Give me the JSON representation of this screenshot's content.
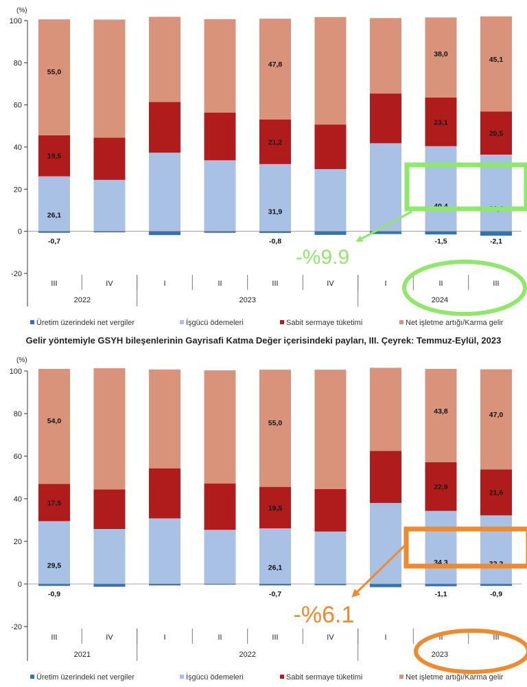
{
  "colors": {
    "tax": "#2e75b6",
    "labor": "#a9c1e4",
    "capital": "#b01c1c",
    "surplus": "#d9937a",
    "highlight_green": "#8ee86a",
    "highlight_orange": "#f08a2c"
  },
  "legend": [
    {
      "key": "tax",
      "label": "Üretim üzerindeki net vergiler"
    },
    {
      "key": "labor",
      "label": "İşgücü ödemeleri"
    },
    {
      "key": "capital",
      "label": "Sabit sermaye tüketimi"
    },
    {
      "key": "surplus",
      "label": "Net işletme artığı/Karma gelir"
    }
  ],
  "middle_caption": "Gelir yöntemiyle GSYH bileşenlerinin Gayrisafi Katma Değer içerisindeki payları, III. Çeyrek: Temmuz-Eylül, 2023",
  "chart_data": [
    {
      "type": "bar",
      "stacked": true,
      "ylabel": "(%)",
      "ylim": [
        -20,
        100
      ],
      "yticks": [
        -20,
        0,
        20,
        40,
        60,
        80,
        100
      ],
      "grid": false,
      "legend_position": "bottom",
      "categories": [
        "III",
        "IV",
        "I",
        "II",
        "III",
        "IV",
        "I",
        "II",
        "III"
      ],
      "year_groups": [
        {
          "label": "2022",
          "count": 2
        },
        {
          "label": "2023",
          "count": 4
        },
        {
          "label": "2024",
          "count": 3
        }
      ],
      "series": [
        {
          "key": "tax",
          "name": "Üretim üzerindeki net vergiler",
          "values": [
            -0.7,
            -0.5,
            -1.8,
            -0.7,
            -0.8,
            -1.7,
            -1.3,
            -1.5,
            -2.1
          ]
        },
        {
          "key": "labor",
          "name": "İşgücü ödemeleri",
          "values": [
            26.1,
            24.4,
            37.3,
            33.7,
            31.9,
            29.5,
            41.8,
            40.4,
            36.4
          ]
        },
        {
          "key": "capital",
          "name": "Sabit sermaye tüketimi",
          "values": [
            19.5,
            20.0,
            24.1,
            22.6,
            21.2,
            21.2,
            23.6,
            23.1,
            20.5
          ]
        },
        {
          "key": "surplus",
          "name": "Net işletme artığı/Karma gelir",
          "values": [
            55.0,
            56.1,
            40.4,
            44.4,
            47.8,
            51.0,
            35.8,
            38.0,
            45.1
          ]
        }
      ],
      "data_labels": [
        {
          "index": 0,
          "tax": "-0,7",
          "labor": "26,1",
          "capital": "19,5",
          "surplus": "55,0"
        },
        {
          "index": 4,
          "tax": "-0,8",
          "labor": "31,9",
          "capital": "21,2",
          "surplus": "47,8"
        },
        {
          "index": 7,
          "tax": "-1,5",
          "labor": "40,4",
          "capital": "23,1",
          "surplus": "38,0"
        },
        {
          "index": 8,
          "tax": "-2,1",
          "labor": "36,4",
          "capital": "20,5",
          "surplus": "45,1"
        }
      ],
      "annotation": {
        "text": "-%9.9",
        "color_key": "highlight_green"
      }
    },
    {
      "type": "bar",
      "stacked": true,
      "ylabel": "(%)",
      "ylim": [
        -20,
        100
      ],
      "yticks": [
        -20,
        0,
        20,
        40,
        60,
        80,
        100
      ],
      "grid": false,
      "legend_position": "bottom",
      "categories": [
        "III",
        "IV",
        "I",
        "II",
        "III",
        "IV",
        "I",
        "II",
        "III"
      ],
      "year_groups": [
        {
          "label": "2021",
          "count": 2
        },
        {
          "label": "2022",
          "count": 4
        },
        {
          "label": "2023",
          "count": 3
        }
      ],
      "series": [
        {
          "key": "tax",
          "name": "Üretim üzerindeki net vergiler",
          "values": [
            -0.9,
            -1.3,
            -0.7,
            -0.3,
            -0.7,
            -0.6,
            -1.5,
            -1.1,
            -0.9
          ]
        },
        {
          "key": "labor",
          "name": "İşgücü ödemeleri",
          "values": [
            29.5,
            25.8,
            30.8,
            25.4,
            26.1,
            24.6,
            38.0,
            34.3,
            32.2
          ]
        },
        {
          "key": "capital",
          "name": "Sabit sermaye tüketimi",
          "values": [
            17.5,
            18.6,
            23.5,
            21.8,
            19.5,
            20.0,
            24.5,
            22.9,
            21.6
          ]
        },
        {
          "key": "surplus",
          "name": "Net işletme artığı/Karma gelir",
          "values": [
            54.0,
            56.9,
            46.4,
            53.1,
            55.0,
            56.0,
            39.0,
            43.8,
            47.0
          ]
        }
      ],
      "data_labels": [
        {
          "index": 0,
          "tax": "-0,9",
          "labor": "29,5",
          "capital": "17,5",
          "surplus": "54,0"
        },
        {
          "index": 4,
          "tax": "-0,7",
          "labor": "26,1",
          "capital": "19,5",
          "surplus": "55,0"
        },
        {
          "index": 7,
          "tax": "-1,1",
          "labor": "34,3",
          "capital": "22,9",
          "surplus": "43,8"
        },
        {
          "index": 8,
          "tax": "-0,9",
          "labor": "32,2",
          "capital": "21,6",
          "surplus": "47,0"
        }
      ],
      "annotation": {
        "text": "-%6.1",
        "color_key": "highlight_orange"
      }
    }
  ]
}
